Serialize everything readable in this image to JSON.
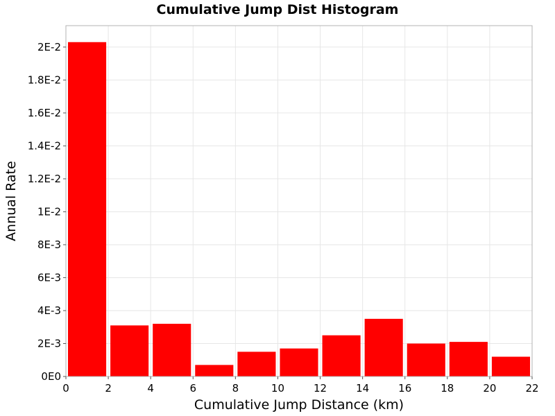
{
  "chart_data": {
    "type": "bar",
    "title": "Cumulative Jump Dist Histogram",
    "xlabel": "Cumulative Jump Distance (km)",
    "ylabel": "Annual Rate",
    "xlim": [
      0,
      22
    ],
    "ylim": [
      0,
      0.0213
    ],
    "x_ticks": [
      0,
      2,
      4,
      6,
      8,
      10,
      12,
      14,
      16,
      18,
      20,
      22
    ],
    "x_tick_labels": [
      "0",
      "2",
      "4",
      "6",
      "8",
      "10",
      "12",
      "14",
      "16",
      "18",
      "20",
      "22"
    ],
    "y_ticks": [
      0,
      0.002,
      0.004,
      0.006,
      0.008,
      0.01,
      0.012,
      0.014,
      0.016,
      0.018,
      0.02
    ],
    "y_tick_labels": [
      "0E0",
      "2E-3",
      "4E-3",
      "6E-3",
      "8E-3",
      "1E-2",
      "1.2E-2",
      "1.4E-2",
      "1.6E-2",
      "1.8E-2",
      "2E-2"
    ],
    "grid": true,
    "bin_width": 2,
    "bins": [
      {
        "x": 1,
        "value": 0.0203
      },
      {
        "x": 3,
        "value": 0.0031
      },
      {
        "x": 5,
        "value": 0.0032
      },
      {
        "x": 7,
        "value": 0.0007
      },
      {
        "x": 9,
        "value": 0.0015
      },
      {
        "x": 11,
        "value": 0.0017
      },
      {
        "x": 13,
        "value": 0.0025
      },
      {
        "x": 15,
        "value": 0.0035
      },
      {
        "x": 17,
        "value": 0.002
      },
      {
        "x": 19,
        "value": 0.0021
      },
      {
        "x": 21,
        "value": 0.0012
      }
    ],
    "bar_color": "#ff0000",
    "grid_color": "#e6e6e6"
  }
}
